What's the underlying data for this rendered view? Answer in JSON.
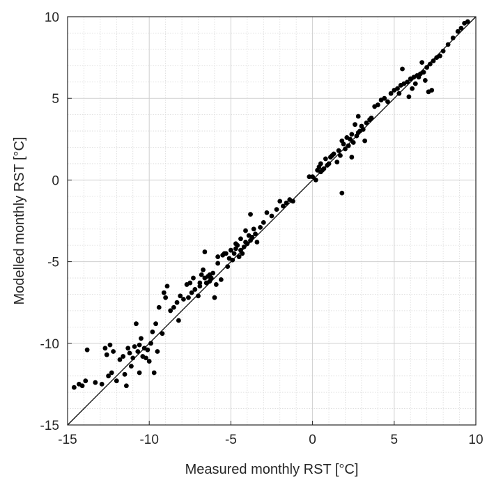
{
  "chart_data": {
    "type": "scatter",
    "title": "",
    "xlabel": "Measured monthly RST [°C]",
    "ylabel": "Modelled monthly RST [°C]",
    "xlim": [
      -15,
      10
    ],
    "ylim": [
      -15,
      10
    ],
    "xticks": [
      -15,
      -10,
      -5,
      0,
      5,
      10
    ],
    "yticks": [
      -15,
      -10,
      -5,
      0,
      5,
      10
    ],
    "xtick_labels": [
      "-15",
      "-10",
      "-5",
      "0",
      "5",
      "10"
    ],
    "ytick_labels": [
      "-15",
      "-10",
      "-5",
      "0",
      "5",
      "10"
    ],
    "grid": true,
    "minor_grid": true,
    "reference_line": "1:1",
    "marker_color": "#000000",
    "x": [
      -14.6,
      -14.3,
      -14.1,
      -13.9,
      -13.8,
      -13.3,
      -12.9,
      -12.7,
      -12.5,
      -12.3,
      -12.6,
      -12.4,
      -12.2,
      -12.0,
      -11.8,
      -11.6,
      -11.5,
      -11.3,
      -11.2,
      -11.0,
      -10.9,
      -10.7,
      -10.6,
      -10.5,
      -10.4,
      -10.3,
      -10.1,
      -10.0,
      -9.9,
      -9.7,
      -11.4,
      -11.1,
      -10.8,
      -10.6,
      -10.2,
      -9.8,
      -9.6,
      -9.4,
      -9.2,
      -9.0,
      -9.5,
      -9.1,
      -8.9,
      -8.7,
      -8.5,
      -8.3,
      -8.1,
      -7.9,
      -7.7,
      -7.5,
      -7.3,
      -7.2,
      -7.0,
      -6.9,
      -6.8,
      -6.7,
      -6.6,
      -6.5,
      -6.4,
      -6.3,
      -6.2,
      -6.1,
      -6.0,
      -5.9,
      -5.8,
      -5.6,
      -5.5,
      -5.3,
      -5.2,
      -5.1,
      -5.0,
      -4.9,
      -4.8,
      -4.7,
      -4.6,
      -4.5,
      -4.4,
      -4.3,
      -4.2,
      -4.1,
      -4.0,
      -3.9,
      -3.8,
      -3.7,
      -3.6,
      -3.5,
      -3.4,
      -3.2,
      -3.0,
      -2.8,
      -2.5,
      -2.2,
      -2.0,
      -1.8,
      -1.6,
      -1.4,
      -1.2,
      -8.2,
      -7.6,
      -7.4,
      -6.9,
      -6.6,
      -6.3,
      -5.8,
      -5.4,
      -5.0,
      -4.7,
      -4.4,
      -4.1,
      -3.8,
      -0.2,
      0.0,
      0.2,
      0.3,
      0.4,
      0.5,
      0.6,
      0.7,
      0.8,
      0.9,
      1.0,
      1.1,
      1.3,
      1.5,
      1.6,
      1.7,
      1.8,
      1.9,
      2.0,
      2.1,
      2.2,
      2.3,
      2.4,
      2.5,
      2.6,
      2.7,
      2.8,
      2.9,
      3.0,
      3.1,
      3.3,
      3.5,
      3.6,
      3.8,
      4.0,
      4.2,
      4.4,
      4.6,
      4.8,
      5.0,
      5.2,
      5.4,
      5.6,
      5.8,
      6.0,
      6.2,
      6.4,
      6.6,
      6.8,
      7.0,
      7.2,
      7.4,
      7.6,
      7.8,
      8.0,
      8.3,
      8.6,
      8.9,
      9.1,
      9.3,
      9.5,
      5.3,
      5.5,
      5.9,
      6.1,
      6.3,
      6.5,
      6.7,
      6.9,
      7.1,
      7.3,
      1.8,
      2.4,
      2.8,
      3.2,
      0.5,
      1.2
    ],
    "y": [
      -12.7,
      -12.5,
      -12.6,
      -12.3,
      -10.4,
      -12.4,
      -12.5,
      -10.3,
      -12.0,
      -11.8,
      -10.7,
      -10.1,
      -10.5,
      -12.3,
      -11.0,
      -10.8,
      -11.9,
      -10.3,
      -10.6,
      -10.9,
      -10.2,
      -10.5,
      -10.1,
      -9.7,
      -10.8,
      -10.3,
      -10.4,
      -11.1,
      -10.0,
      -11.8,
      -12.6,
      -11.4,
      -8.8,
      -11.8,
      -10.9,
      -9.3,
      -8.8,
      -7.8,
      -9.4,
      -7.2,
      -10.5,
      -6.9,
      -6.5,
      -8.0,
      -7.8,
      -7.5,
      -7.1,
      -7.3,
      -6.4,
      -6.3,
      -6.0,
      -6.7,
      -7.1,
      -6.5,
      -5.8,
      -5.5,
      -6.0,
      -6.3,
      -5.9,
      -6.2,
      -6.0,
      -5.7,
      -7.2,
      -6.4,
      -5.1,
      -6.1,
      -4.6,
      -4.5,
      -5.3,
      -4.8,
      -4.3,
      -4.9,
      -4.5,
      -4.2,
      -4.0,
      -4.7,
      -4.3,
      -4.5,
      -4.1,
      -3.8,
      -3.9,
      -3.4,
      -3.7,
      -3.5,
      -3.0,
      -3.3,
      -3.8,
      -2.9,
      -2.6,
      -2.0,
      -2.2,
      -1.8,
      -1.3,
      -1.6,
      -1.4,
      -1.2,
      -1.3,
      -8.6,
      -7.2,
      -6.9,
      -6.3,
      -4.4,
      -5.8,
      -4.7,
      -4.5,
      -4.3,
      -3.9,
      -3.6,
      -3.1,
      -2.1,
      0.2,
      0.2,
      0.0,
      0.6,
      0.8,
      1.0,
      0.6,
      0.7,
      1.3,
      0.9,
      1.0,
      1.4,
      1.6,
      1.1,
      1.8,
      1.5,
      2.4,
      2.2,
      1.9,
      2.6,
      2.1,
      2.5,
      2.8,
      2.3,
      3.4,
      2.7,
      2.9,
      3.0,
      3.3,
      3.1,
      3.5,
      3.7,
      3.8,
      4.5,
      4.6,
      4.9,
      5.0,
      4.8,
      5.3,
      5.5,
      5.6,
      5.8,
      5.9,
      6.0,
      6.2,
      6.3,
      6.4,
      6.5,
      6.6,
      6.9,
      7.1,
      7.3,
      7.5,
      7.6,
      7.9,
      8.3,
      8.7,
      9.1,
      9.3,
      9.6,
      9.7,
      5.3,
      6.8,
      5.1,
      5.6,
      5.9,
      6.3,
      7.2,
      6.1,
      5.4,
      5.5,
      -0.8,
      1.4,
      3.9,
      2.4,
      0.5,
      1.5
    ]
  }
}
